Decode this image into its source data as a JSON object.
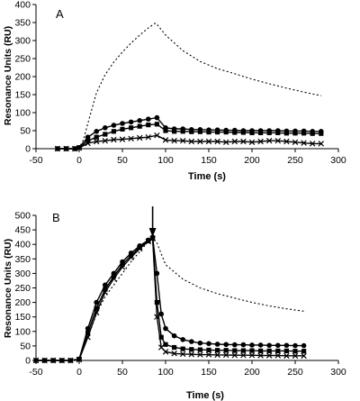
{
  "chart_data": [
    {
      "type": "line",
      "panel_label": "A",
      "xlabel": "Time (s)",
      "ylabel": "Resonance Units (RU)",
      "xlim": [
        -50,
        300
      ],
      "ylim": [
        0,
        400
      ],
      "xticks": [
        -50,
        0,
        50,
        100,
        150,
        200,
        250,
        300
      ],
      "yticks": [
        0,
        50,
        100,
        150,
        200,
        250,
        300,
        350,
        400
      ],
      "grid": false,
      "legend": "none",
      "series": [
        {
          "marker": "none",
          "style": "dotted",
          "x": [
            -25,
            -10,
            0,
            5,
            10,
            20,
            30,
            40,
            50,
            60,
            70,
            80,
            88,
            90,
            100,
            120,
            140,
            160,
            180,
            200,
            220,
            240,
            260,
            280
          ],
          "y": [
            0,
            0,
            3,
            25,
            70,
            155,
            205,
            240,
            268,
            293,
            315,
            335,
            348,
            345,
            315,
            272,
            242,
            222,
            208,
            193,
            180,
            168,
            157,
            147
          ]
        },
        {
          "marker": "circle",
          "style": "solid",
          "x": [
            -25,
            -15,
            -5,
            0,
            10,
            20,
            30,
            40,
            50,
            60,
            70,
            80,
            90,
            100,
            110,
            120,
            130,
            140,
            150,
            160,
            170,
            180,
            190,
            200,
            210,
            220,
            230,
            240,
            250,
            260,
            270,
            280
          ],
          "y": [
            0,
            0,
            0,
            3,
            32,
            48,
            58,
            65,
            70,
            74,
            78,
            82,
            86,
            58,
            55,
            55,
            53,
            53,
            52,
            52,
            51,
            51,
            50,
            50,
            50,
            50,
            50,
            49,
            49,
            49,
            48,
            48
          ]
        },
        {
          "marker": "square",
          "style": "solid",
          "x": [
            -25,
            -15,
            -5,
            0,
            10,
            20,
            30,
            40,
            50,
            60,
            70,
            80,
            90,
            100,
            110,
            120,
            130,
            140,
            150,
            160,
            170,
            180,
            190,
            200,
            210,
            220,
            230,
            240,
            250,
            260,
            270,
            280
          ],
          "y": [
            0,
            0,
            0,
            3,
            22,
            32,
            40,
            48,
            54,
            58,
            62,
            66,
            68,
            50,
            48,
            48,
            47,
            47,
            46,
            46,
            46,
            45,
            45,
            44,
            44,
            44,
            44,
            43,
            43,
            43,
            42,
            42
          ]
        },
        {
          "marker": "x",
          "style": "solid",
          "x": [
            -25,
            -15,
            -5,
            0,
            10,
            20,
            30,
            40,
            50,
            60,
            70,
            80,
            90,
            100,
            110,
            120,
            130,
            140,
            150,
            160,
            170,
            180,
            190,
            200,
            210,
            220,
            230,
            240,
            250,
            260,
            270,
            280
          ],
          "y": [
            0,
            0,
            0,
            2,
            15,
            20,
            22,
            25,
            26,
            28,
            30,
            32,
            37,
            24,
            22,
            22,
            20,
            20,
            20,
            20,
            18,
            20,
            20,
            18,
            20,
            22,
            22,
            20,
            18,
            16,
            14,
            14
          ]
        }
      ]
    },
    {
      "type": "line",
      "panel_label": "B",
      "xlabel": "Time (s)",
      "ylabel": "Resonance Units (RU)",
      "xlim": [
        -50,
        300
      ],
      "ylim": [
        0,
        500
      ],
      "xticks": [
        -50,
        0,
        50,
        100,
        150,
        200,
        250,
        300
      ],
      "yticks": [
        0,
        50,
        100,
        150,
        200,
        250,
        300,
        350,
        400,
        450,
        500
      ],
      "grid": false,
      "legend": "none",
      "arrow_at_x": 85,
      "series": [
        {
          "marker": "none",
          "style": "dotted",
          "x": [
            -50,
            -10,
            0,
            10,
            20,
            30,
            40,
            50,
            60,
            70,
            80,
            85,
            90,
            100,
            120,
            140,
            160,
            180,
            200,
            220,
            240,
            260
          ],
          "y": [
            0,
            0,
            3,
            80,
            160,
            220,
            260,
            300,
            340,
            375,
            410,
            425,
            405,
            330,
            280,
            250,
            230,
            215,
            200,
            188,
            178,
            170
          ]
        },
        {
          "marker": "circle",
          "style": "solid",
          "x": [
            -50,
            -40,
            -30,
            -20,
            -10,
            0,
            10,
            20,
            30,
            40,
            50,
            60,
            70,
            80,
            85,
            90,
            95,
            100,
            110,
            120,
            130,
            140,
            150,
            160,
            170,
            180,
            190,
            200,
            210,
            220,
            230,
            240,
            250,
            260
          ],
          "y": [
            0,
            0,
            0,
            0,
            0,
            5,
            110,
            200,
            260,
            300,
            340,
            370,
            395,
            415,
            425,
            300,
            160,
            110,
            85,
            72,
            65,
            60,
            58,
            56,
            55,
            54,
            54,
            53,
            53,
            52,
            52,
            52,
            51,
            51
          ]
        },
        {
          "marker": "square",
          "style": "solid",
          "x": [
            -50,
            -40,
            -30,
            -20,
            -10,
            0,
            10,
            20,
            30,
            40,
            50,
            60,
            70,
            80,
            85,
            90,
            95,
            100,
            110,
            120,
            130,
            140,
            150,
            160,
            170,
            180,
            190,
            200,
            210,
            220,
            230,
            240,
            250,
            260
          ],
          "y": [
            0,
            0,
            0,
            0,
            0,
            4,
            95,
            180,
            245,
            290,
            330,
            362,
            390,
            412,
            422,
            200,
            80,
            55,
            45,
            40,
            38,
            37,
            36,
            35,
            35,
            34,
            34,
            34,
            33,
            33,
            33,
            33,
            32,
            32
          ]
        },
        {
          "marker": "x",
          "style": "solid",
          "x": [
            -50,
            -40,
            -30,
            -20,
            -10,
            0,
            10,
            20,
            30,
            40,
            50,
            60,
            70,
            80,
            85,
            90,
            95,
            100,
            110,
            120,
            130,
            140,
            150,
            160,
            170,
            180,
            190,
            200,
            210,
            220,
            230,
            240,
            250,
            260
          ],
          "y": [
            0,
            0,
            0,
            0,
            0,
            3,
            80,
            165,
            235,
            282,
            322,
            355,
            385,
            410,
            420,
            150,
            45,
            30,
            24,
            22,
            21,
            20,
            20,
            19,
            19,
            18,
            18,
            18,
            17,
            17,
            17,
            16,
            16,
            16
          ]
        }
      ]
    }
  ]
}
